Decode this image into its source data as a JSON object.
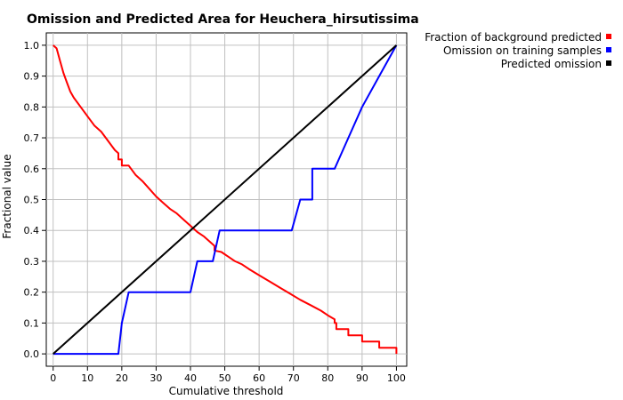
{
  "chart_data": {
    "type": "line",
    "title": "Omission and Predicted Area for Heuchera_hirsutissima",
    "xlabel": "Cumulative threshold",
    "ylabel": "Fractional value",
    "xlim": [
      -2,
      103
    ],
    "ylim": [
      -0.04,
      1.04
    ],
    "xticks": [
      0,
      10,
      20,
      30,
      40,
      50,
      60,
      70,
      80,
      90,
      100
    ],
    "yticks": [
      0.0,
      0.1,
      0.2,
      0.3,
      0.4,
      0.5,
      0.6,
      0.7,
      0.8,
      0.9,
      1.0
    ],
    "xtick_labels": [
      "0",
      "10",
      "20",
      "30",
      "40",
      "50",
      "60",
      "70",
      "80",
      "90",
      "100"
    ],
    "ytick_labels": [
      "0.0",
      "0.1",
      "0.2",
      "0.3",
      "0.4",
      "0.5",
      "0.6",
      "0.7",
      "0.8",
      "0.9",
      "1.0"
    ],
    "grid": true,
    "legend_position": "top-right, outside plot",
    "series": [
      {
        "name": "Fraction of background predicted",
        "color": "#ff0000",
        "points": [
          [
            0,
            1.0
          ],
          [
            1,
            0.99
          ],
          [
            2,
            0.95
          ],
          [
            3,
            0.91
          ],
          [
            4,
            0.88
          ],
          [
            5,
            0.85
          ],
          [
            6,
            0.83
          ],
          [
            8,
            0.8
          ],
          [
            10,
            0.77
          ],
          [
            12,
            0.74
          ],
          [
            14,
            0.72
          ],
          [
            16,
            0.69
          ],
          [
            18,
            0.66
          ],
          [
            19,
            0.65
          ],
          [
            19,
            0.63
          ],
          [
            20,
            0.63
          ],
          [
            20,
            0.61
          ],
          [
            22,
            0.61
          ],
          [
            24,
            0.58
          ],
          [
            26,
            0.56
          ],
          [
            28,
            0.535
          ],
          [
            30,
            0.51
          ],
          [
            32,
            0.49
          ],
          [
            34,
            0.47
          ],
          [
            36,
            0.455
          ],
          [
            38,
            0.435
          ],
          [
            40,
            0.415
          ],
          [
            42,
            0.395
          ],
          [
            44,
            0.38
          ],
          [
            46,
            0.36
          ],
          [
            47,
            0.35
          ],
          [
            47,
            0.335
          ],
          [
            49,
            0.33
          ],
          [
            51,
            0.315
          ],
          [
            53,
            0.3
          ],
          [
            55,
            0.29
          ],
          [
            57,
            0.275
          ],
          [
            60,
            0.255
          ],
          [
            63,
            0.235
          ],
          [
            66,
            0.215
          ],
          [
            69,
            0.195
          ],
          [
            72,
            0.175
          ],
          [
            75,
            0.158
          ],
          [
            78,
            0.14
          ],
          [
            80,
            0.125
          ],
          [
            82,
            0.112
          ],
          [
            82,
            0.1
          ],
          [
            82.5,
            0.1
          ],
          [
            82.5,
            0.08
          ],
          [
            86,
            0.08
          ],
          [
            86,
            0.06
          ],
          [
            90,
            0.06
          ],
          [
            90,
            0.04
          ],
          [
            95,
            0.04
          ],
          [
            95,
            0.02
          ],
          [
            100,
            0.02
          ],
          [
            100,
            0.0
          ]
        ]
      },
      {
        "name": "Omission on training samples",
        "color": "#0000ff",
        "points": [
          [
            0,
            0.0
          ],
          [
            19,
            0.0
          ],
          [
            20,
            0.1
          ],
          [
            22,
            0.2
          ],
          [
            40,
            0.2
          ],
          [
            42,
            0.3
          ],
          [
            46.5,
            0.3
          ],
          [
            48.5,
            0.4
          ],
          [
            69.5,
            0.4
          ],
          [
            72,
            0.5
          ],
          [
            75.5,
            0.5
          ],
          [
            75.5,
            0.6
          ],
          [
            82,
            0.6
          ],
          [
            86,
            0.7
          ],
          [
            90,
            0.8
          ],
          [
            95,
            0.9
          ],
          [
            100,
            1.0
          ]
        ]
      },
      {
        "name": "Predicted omission",
        "color": "#000000",
        "points": [
          [
            0,
            0.0
          ],
          [
            100,
            1.0
          ]
        ]
      }
    ]
  }
}
